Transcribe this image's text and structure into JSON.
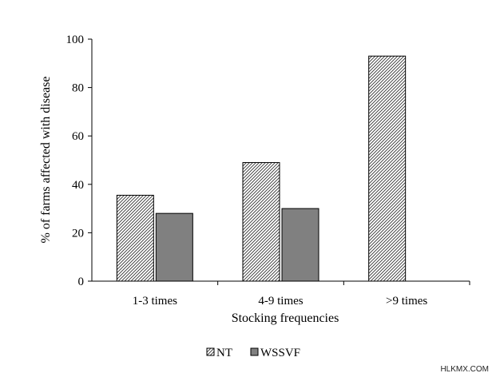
{
  "chart_data": {
    "type": "bar",
    "categories": [
      "1-3 times",
      "4-9 times",
      ">9 times"
    ],
    "series": [
      {
        "name": "NT",
        "values": [
          35.5,
          49,
          93
        ],
        "pattern": "diagonal-hatch"
      },
      {
        "name": "WSSVF",
        "values": [
          28,
          30,
          null
        ],
        "color": "#808080"
      }
    ],
    "xlabel": "Stocking frequencies",
    "ylabel": "% of farms affected with disease",
    "ylim": [
      0,
      100
    ],
    "yticks": [
      "0",
      "20",
      "40",
      "60",
      "80",
      "100"
    ],
    "grid": false,
    "legend_position": "bottom-center"
  },
  "watermark": "HLKMX.COM"
}
